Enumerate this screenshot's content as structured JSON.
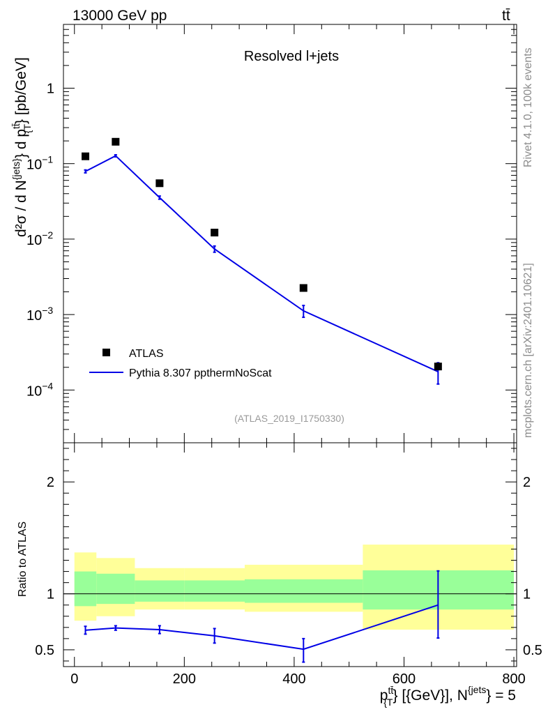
{
  "header": {
    "energy_label": "13000 GeV pp",
    "process_label": "tt̄"
  },
  "side": {
    "rivet_label": "Rivet 4.1.0,  100k events",
    "mcplots_label": "mcplots.cern.ch [arXiv:2401.10621]"
  },
  "chart_data": [
    {
      "type": "scatter",
      "panel": "main",
      "title": "Resolved l+jets",
      "analysis_label": "(ATLAS_2019_I1750330)",
      "yscale": "log",
      "ylim": [
        2e-05,
        7
      ],
      "xlim": [
        -20,
        805
      ],
      "ylabel_parts": {
        "d2sigma": "d²σ",
        "slash": " / ",
        "dN": "d N",
        "jets_sup": "{jets}",
        "dp": "} d p",
        "tt_sup": "tt̄",
        "T_sub": "{T",
        "close": "} [pb/GeV]"
      },
      "yticks": [
        {
          "value": 1,
          "label": "1"
        },
        {
          "value": 0.1,
          "base": "10",
          "exp": "−1"
        },
        {
          "value": 0.01,
          "base": "10",
          "exp": "−2"
        },
        {
          "value": 0.001,
          "base": "10",
          "exp": "−3"
        },
        {
          "value": 0.0001,
          "base": "10",
          "exp": "−4"
        }
      ],
      "series": [
        {
          "name": "ATLAS",
          "kind": "data",
          "color": "#000000",
          "x": [
            20,
            75,
            155,
            255,
            417,
            662
          ],
          "y": [
            0.125,
            0.195,
            0.055,
            0.0122,
            0.00225,
            0.000205
          ],
          "yerr_lo": [
            0,
            0,
            0,
            0,
            0,
            0
          ],
          "yerr_hi": [
            0,
            0,
            0,
            0,
            0,
            0
          ]
        },
        {
          "name": "Pythia 8.307 ppthermNoScat",
          "kind": "mc",
          "color": "#0000e6",
          "x": [
            20,
            75,
            155,
            255,
            417,
            662
          ],
          "y": [
            0.079,
            0.127,
            0.0355,
            0.0074,
            0.00112,
            0.000175
          ],
          "yerr_lo": [
            0.0035,
            0.004,
            0.0017,
            0.0007,
            0.0002,
            5.5e-05
          ],
          "yerr_hi": [
            0.0035,
            0.004,
            0.0017,
            0.0007,
            0.0002,
            5.5e-05
          ]
        }
      ],
      "legend": {
        "position": "bottom-left"
      }
    },
    {
      "type": "line",
      "panel": "ratio",
      "ylabel": "Ratio to ATLAS",
      "xlabel_parts": {
        "p": "p",
        "tt_sup": "tt̄",
        "T_sub": "{T",
        "rest": "} [{GeV}], N",
        "jets_sup": "{jets",
        "tail": "} = 5"
      },
      "xlim": [
        -20,
        805
      ],
      "ylim": [
        0.35,
        2.35
      ],
      "xticks": [
        0,
        200,
        400,
        600,
        800
      ],
      "yticks": [
        0.5,
        1,
        2
      ],
      "reference_line": 1,
      "bands": [
        {
          "x0": 0,
          "x1": 40,
          "yellow": [
            0.76,
            1.37
          ],
          "green": [
            0.89,
            1.2
          ]
        },
        {
          "x0": 40,
          "x1": 110,
          "yellow": [
            0.8,
            1.32
          ],
          "green": [
            0.91,
            1.18
          ]
        },
        {
          "x0": 110,
          "x1": 200,
          "yellow": [
            0.86,
            1.23
          ],
          "green": [
            0.93,
            1.12
          ]
        },
        {
          "x0": 200,
          "x1": 310,
          "yellow": [
            0.86,
            1.23
          ],
          "green": [
            0.93,
            1.12
          ]
        },
        {
          "x0": 310,
          "x1": 525,
          "yellow": [
            0.84,
            1.26
          ],
          "green": [
            0.92,
            1.13
          ]
        },
        {
          "x0": 525,
          "x1": 800,
          "yellow": [
            0.68,
            1.44
          ],
          "green": [
            0.86,
            1.21
          ]
        }
      ],
      "band_colors": {
        "yellow": "#ffff99",
        "green": "#99ff99"
      },
      "series": [
        {
          "name": "Pythia 8.307 ppthermNoScat / ATLAS",
          "color": "#0000e6",
          "x": [
            20,
            75,
            155,
            255,
            417,
            662
          ],
          "y": [
            0.675,
            0.695,
            0.68,
            0.625,
            0.505,
            0.9
          ],
          "yerr_lo": [
            0.035,
            0.02,
            0.035,
            0.065,
            0.115,
            0.295
          ],
          "yerr_hi": [
            0.035,
            0.02,
            0.035,
            0.065,
            0.095,
            0.305
          ]
        }
      ]
    }
  ]
}
